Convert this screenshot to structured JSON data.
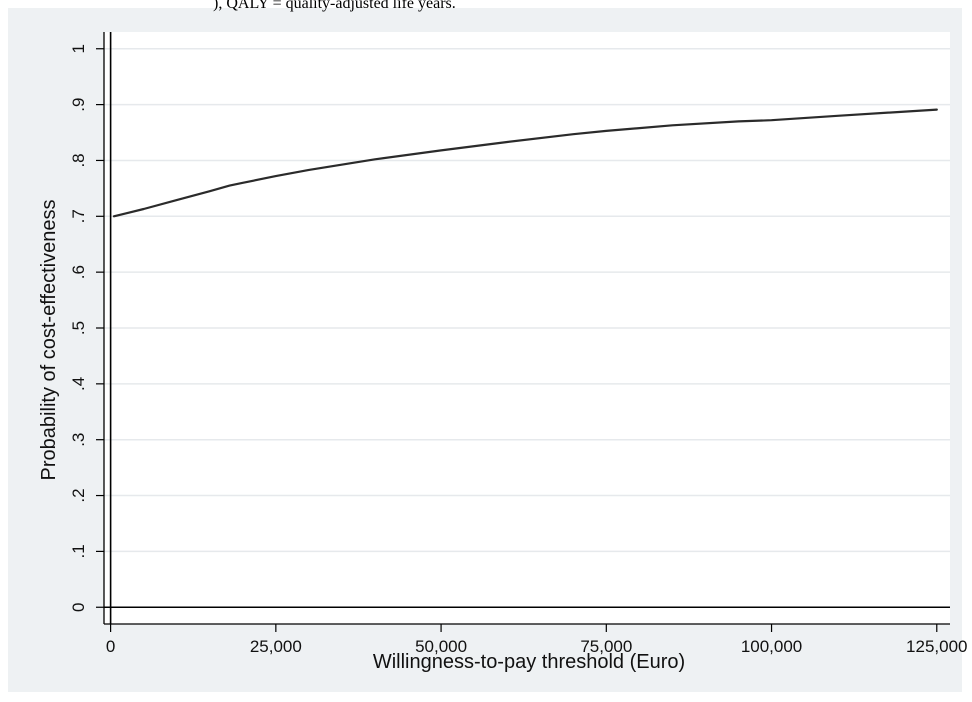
{
  "header_caption": "), QALY = quality-adjusted life years.",
  "colors": {
    "background": "#eef1f3",
    "plot_area": "#ffffff",
    "gridline": "#e6e9ec",
    "axis": "#000000",
    "line": "#2b2b2b"
  },
  "chart_data": {
    "type": "line",
    "title": "",
    "xlabel": "Willingness-to-pay threshold (Euro)",
    "ylabel": "Probability of cost-effectiveness",
    "xlim": [
      -1000,
      127000
    ],
    "ylim": [
      -0.03,
      1.03
    ],
    "x_ticks": [
      0,
      25000,
      50000,
      75000,
      100000,
      125000
    ],
    "x_tick_labels": [
      "0",
      "25,000",
      "50,000",
      "75,000",
      "100,000",
      "125,000"
    ],
    "y_ticks": [
      0,
      0.1,
      0.2,
      0.3,
      0.4,
      0.5,
      0.6,
      0.7,
      0.8,
      0.9,
      1.0
    ],
    "y_tick_labels": [
      "0",
      ".1",
      ".2",
      ".3",
      ".4",
      ".5",
      ".6",
      ".7",
      ".8",
      ".9",
      "1"
    ],
    "grid": true,
    "series": [
      {
        "x": [
          500,
          5000,
          10000,
          15000,
          18000,
          20000,
          25000,
          30000,
          40000,
          50000,
          60000,
          70000,
          75000,
          85000,
          95000,
          100000,
          110000,
          125000
        ],
        "values": [
          0.7,
          0.713,
          0.729,
          0.745,
          0.755,
          0.76,
          0.772,
          0.783,
          0.802,
          0.818,
          0.833,
          0.847,
          0.853,
          0.863,
          0.87,
          0.872,
          0.88,
          0.891
        ]
      }
    ]
  }
}
